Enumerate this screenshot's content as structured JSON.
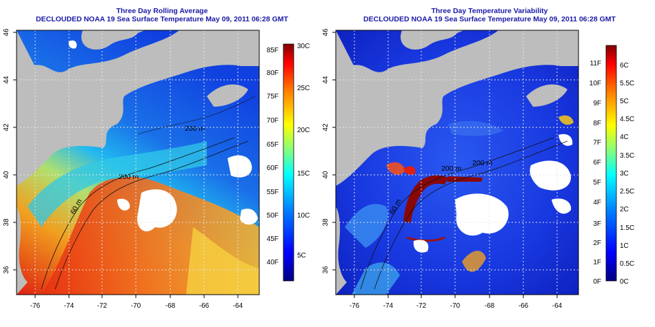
{
  "colors": {
    "land": "#bdbdbd",
    "cloud": "#ffffff",
    "grid": "#e6e6e6",
    "title": "#1a1aa6",
    "ocean_cold": "#1040e0",
    "ocean_cool": "#20b8f0",
    "ocean_mid": "#8fe0a0",
    "ocean_warm": "#f0a020",
    "ocean_hot": "#e02010",
    "var_low": "#1028d0",
    "var_mid": "#3a6ff0",
    "var_high": "#7a0a0a"
  },
  "panels": [
    {
      "id": "rolling-average",
      "title_line1": "Three Day Rolling Average",
      "title_line2": "DECLOUDED NOAA 19 Sea Surface Temperature May 09, 2011 06:28 GMT",
      "x_ticks": [
        "-76",
        "-74",
        "-72",
        "-70",
        "-68",
        "-66",
        "-64"
      ],
      "y_ticks": [
        "36",
        "38",
        "40",
        "42",
        "44",
        "46"
      ],
      "colorbar": {
        "gradient": [
          "#000080",
          "#0000ff",
          "#0080ff",
          "#00ffff",
          "#80ff80",
          "#ffff00",
          "#ff8000",
          "#ff0000",
          "#800000"
        ],
        "left_labels": [
          "40F",
          "45F",
          "50F",
          "55F",
          "60F",
          "65F",
          "70F",
          "75F",
          "80F",
          "85F"
        ],
        "right_labels": [
          "5C",
          "10C",
          "15C",
          "20C",
          "25C",
          "30C"
        ]
      },
      "contour_labels": [
        "60 m",
        "200 m",
        "200 m"
      ]
    },
    {
      "id": "temperature-variability",
      "title_line1": "Three Day Temperature Variability",
      "title_line2": "DECLOUDED NOAA 19 Sea Surface Temperature May 09, 2011 06:28 GMT",
      "x_ticks": [
        "-76",
        "-74",
        "-72",
        "-70",
        "-68",
        "-66",
        "-64"
      ],
      "y_ticks": [
        "36",
        "38",
        "40",
        "42",
        "44",
        "46"
      ],
      "colorbar": {
        "gradient": [
          "#000080",
          "#0000ff",
          "#0080ff",
          "#00ffff",
          "#80ff80",
          "#ffff00",
          "#ff8000",
          "#ff0000",
          "#800000"
        ],
        "left_labels": [
          "0F",
          "1F",
          "2F",
          "3F",
          "4F",
          "5F",
          "6F",
          "7F",
          "8F",
          "9F",
          "10F",
          "11F"
        ],
        "right_labels": [
          "0C",
          "0.5C",
          "1C",
          "1.5C",
          "2C",
          "2.5C",
          "3C",
          "3.5C",
          "4C",
          "4.5C",
          "5C",
          "5.5C",
          "6C"
        ]
      },
      "contour_labels": [
        "60 m",
        "200 m",
        "200 m"
      ]
    }
  ]
}
